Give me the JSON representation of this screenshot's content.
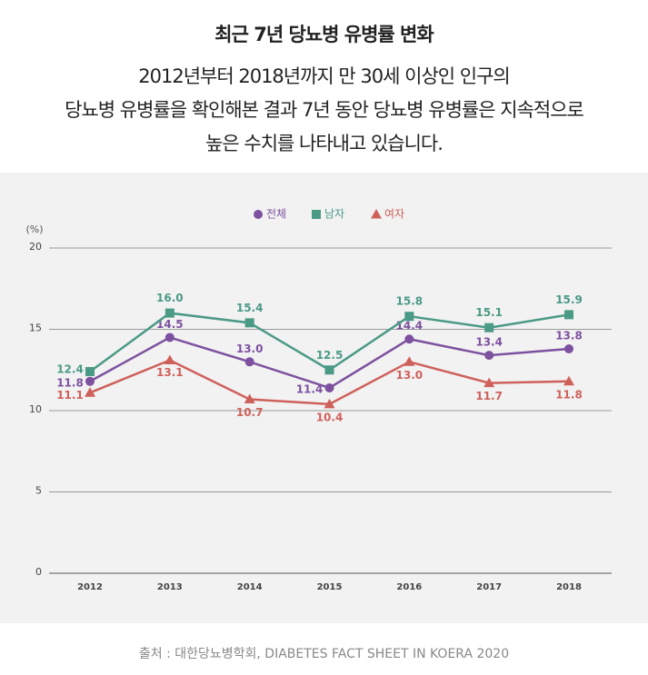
{
  "header": {
    "title": "최근 7년 당뇨병 유병률 변화",
    "subtitle_lines": [
      "2012년부터 2018년까지 만 30세 이상인 인구의",
      "당뇨병 유병률을 확인해본 결과 7년 동안 당뇨병 유병률은 지속적으로",
      "높은 수치를 나타내고 있습니다."
    ]
  },
  "chart_data": {
    "type": "line",
    "y_unit": "(%)",
    "categories": [
      "2012",
      "2013",
      "2014",
      "2015",
      "2016",
      "2017",
      "2018"
    ],
    "ylim": [
      0,
      20
    ],
    "yticks": [
      0,
      5,
      10,
      15,
      20
    ],
    "grid": true,
    "legend": "top",
    "series": [
      {
        "name": "전체",
        "color": "#7d519f",
        "marker": "circle",
        "values": [
          11.8,
          14.5,
          13.0,
          11.4,
          14.4,
          13.4,
          13.8
        ],
        "value_labels": [
          "11.8",
          "14.5",
          "13.0",
          "11.4",
          "14.4",
          "13.4",
          "13.8"
        ]
      },
      {
        "name": "남자",
        "color": "#4b9a86",
        "marker": "square",
        "values": [
          12.4,
          16.0,
          15.4,
          12.5,
          15.8,
          15.1,
          15.9
        ],
        "value_labels": [
          "12.4",
          "16.0",
          "15.4",
          "12.5",
          "15.8",
          "15.1",
          "15.9"
        ]
      },
      {
        "name": "여자",
        "color": "#cf615b",
        "marker": "triangle",
        "values": [
          11.1,
          13.1,
          10.7,
          10.4,
          13.0,
          11.7,
          11.8
        ],
        "value_labels": [
          "11.1",
          "13.1",
          "10.7",
          "10.4",
          "13.0",
          "11.7",
          "11.8"
        ]
      }
    ]
  },
  "footer": {
    "source": "출처 : 대한당뇨병학회, DIABETES FACT SHEET IN KOERA 2020"
  }
}
